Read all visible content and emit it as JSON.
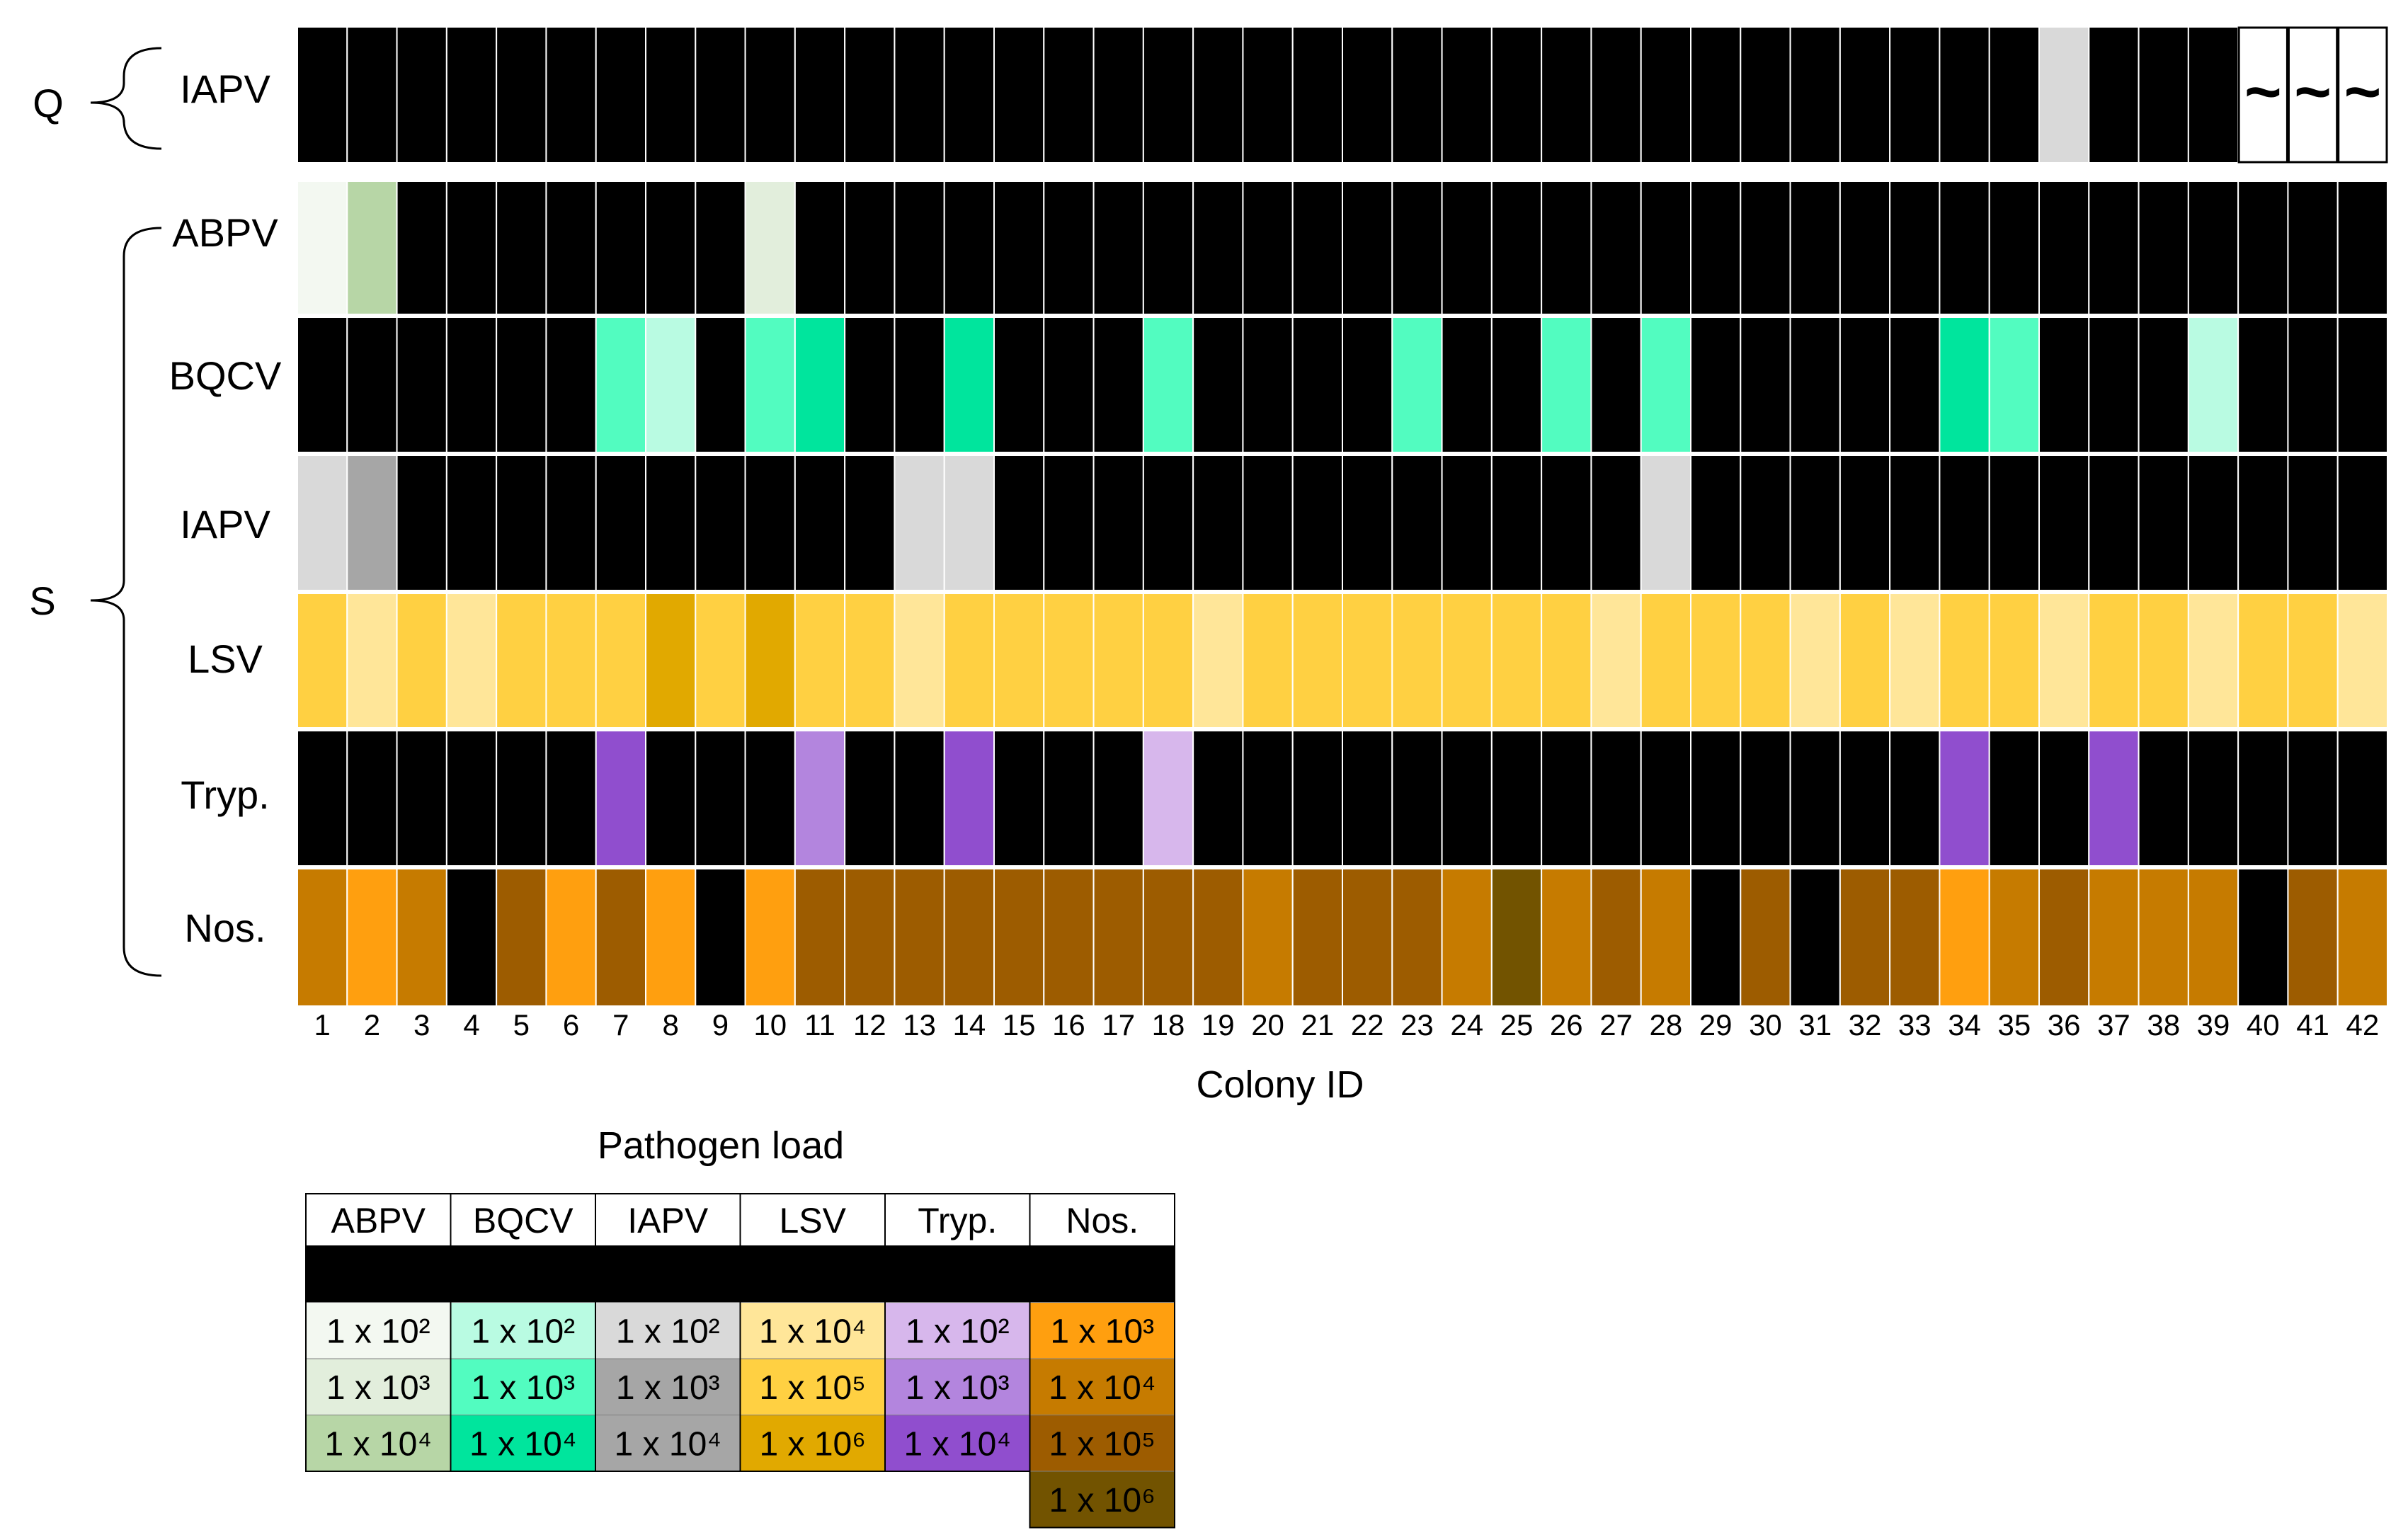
{
  "chart_data": {
    "type": "heatmap",
    "title": "",
    "xlabel": "Colony ID",
    "colonies": [
      "1",
      "2",
      "3",
      "4",
      "5",
      "6",
      "7",
      "8",
      "9",
      "10",
      "11",
      "12",
      "13",
      "14",
      "15",
      "16",
      "17",
      "18",
      "19",
      "20",
      "21",
      "22",
      "23",
      "24",
      "25",
      "26",
      "27",
      "28",
      "29",
      "30",
      "31",
      "32",
      "33",
      "34",
      "35",
      "36",
      "37",
      "38",
      "39",
      "40",
      "41",
      "42"
    ],
    "groups": [
      {
        "name": "Q",
        "rows": [
          "IAPV"
        ]
      },
      {
        "name": "S",
        "rows": [
          "ABPV",
          "BQCV",
          "IAPV",
          "LSV",
          "Tryp.",
          "Nos."
        ]
      }
    ],
    "missing_symbol": "~",
    "rows": [
      {
        "group": "Q",
        "pathogen": "IAPV",
        "levels": [
          0,
          0,
          0,
          0,
          0,
          0,
          0,
          0,
          0,
          0,
          0,
          0,
          0,
          0,
          0,
          0,
          0,
          0,
          0,
          0,
          0,
          0,
          0,
          0,
          0,
          0,
          0,
          0,
          0,
          0,
          0,
          0,
          0,
          0,
          0,
          1,
          0,
          0,
          0,
          null,
          null,
          null
        ]
      },
      {
        "group": "S",
        "pathogen": "ABPV",
        "levels": [
          1,
          3,
          0,
          0,
          0,
          0,
          0,
          0,
          0,
          2,
          0,
          0,
          0,
          0,
          0,
          0,
          0,
          0,
          0,
          0,
          0,
          0,
          0,
          0,
          0,
          0,
          0,
          0,
          0,
          0,
          0,
          0,
          0,
          0,
          0,
          0,
          0,
          0,
          0,
          0,
          0,
          0
        ]
      },
      {
        "group": "S",
        "pathogen": "BQCV",
        "levels": [
          0,
          0,
          0,
          0,
          0,
          0,
          2,
          1,
          0,
          2,
          3,
          0,
          0,
          3,
          0,
          0,
          0,
          2,
          0,
          0,
          0,
          0,
          2,
          0,
          0,
          2,
          0,
          2,
          0,
          0,
          0,
          0,
          0,
          3,
          2,
          0,
          0,
          0,
          1,
          0,
          0,
          0
        ]
      },
      {
        "group": "S",
        "pathogen": "IAPV",
        "levels": [
          1,
          3,
          0,
          0,
          0,
          0,
          0,
          0,
          0,
          0,
          0,
          0,
          1,
          1,
          0,
          0,
          0,
          0,
          0,
          0,
          0,
          0,
          0,
          0,
          0,
          0,
          0,
          1,
          0,
          0,
          0,
          0,
          0,
          0,
          0,
          0,
          0,
          0,
          0,
          0,
          0,
          0
        ]
      },
      {
        "group": "S",
        "pathogen": "LSV",
        "levels": [
          2,
          1,
          2,
          1,
          2,
          2,
          2,
          3,
          2,
          3,
          2,
          2,
          1,
          2,
          2,
          2,
          2,
          2,
          1,
          2,
          2,
          2,
          2,
          2,
          2,
          2,
          1,
          2,
          2,
          2,
          1,
          2,
          1,
          2,
          2,
          1,
          2,
          2,
          1,
          2,
          2,
          1
        ]
      },
      {
        "group": "S",
        "pathogen": "Tryp.",
        "levels": [
          0,
          0,
          0,
          0,
          0,
          0,
          3,
          0,
          0,
          0,
          2,
          0,
          0,
          3,
          0,
          0,
          0,
          1,
          0,
          0,
          0,
          0,
          0,
          0,
          0,
          0,
          0,
          0,
          0,
          0,
          0,
          0,
          0,
          3,
          0,
          0,
          3,
          0,
          0,
          0,
          0,
          0
        ]
      },
      {
        "group": "S",
        "pathogen": "Nos.",
        "levels": [
          2,
          1,
          2,
          0,
          3,
          1,
          3,
          1,
          0,
          1,
          3,
          3,
          3,
          3,
          3,
          3,
          3,
          3,
          3,
          2,
          3,
          3,
          3,
          2,
          4,
          2,
          3,
          2,
          0,
          3,
          0,
          3,
          3,
          1,
          2,
          3,
          2,
          2,
          2,
          0,
          3,
          2
        ]
      }
    ],
    "legend": {
      "title": "Pathogen load",
      "columns": [
        {
          "name": "ABPV",
          "levels": [
            "0",
            "1 x 10^2",
            "1 x 10^3",
            "1 x 10^4"
          ],
          "colors": [
            "#000000",
            "#f3f8f1",
            "#e2eedc",
            "#b7d6a6"
          ]
        },
        {
          "name": "BQCV",
          "levels": [
            "0",
            "1 x 10^2",
            "1 x 10^3",
            "1 x 10^4"
          ],
          "colors": [
            "#000000",
            "#b9fbe2",
            "#52fcc0",
            "#00e59d"
          ]
        },
        {
          "name": "IAPV",
          "levels": [
            "0",
            "1 x 10^2",
            "1 x 10^3",
            "1 x 10^4"
          ],
          "colors": [
            "#000000",
            "#d9d9d9",
            "#a6a6a6",
            "#a6a6a6"
          ]
        },
        {
          "name": "LSV",
          "levels": [
            "0",
            "1 x 10^4",
            "1 x 10^5",
            "1 x 10^6"
          ],
          "colors": [
            "#000000",
            "#ffe699",
            "#ffd042",
            "#e1a900"
          ]
        },
        {
          "name": "Tryp.",
          "levels": [
            "0",
            "1 x 10^2",
            "1 x 10^3",
            "1 x 10^4"
          ],
          "colors": [
            "#000000",
            "#d7b7ec",
            "#b385de",
            "#904ece"
          ]
        },
        {
          "name": "Nos.",
          "levels": [
            "0",
            "1 x 10^3",
            "1 x 10^4",
            "1 x 10^5",
            "1 x 10^6"
          ],
          "colors": [
            "#000000",
            "#ff9f0f",
            "#c67b00",
            "#9d5c00",
            "#725300"
          ]
        }
      ]
    }
  }
}
